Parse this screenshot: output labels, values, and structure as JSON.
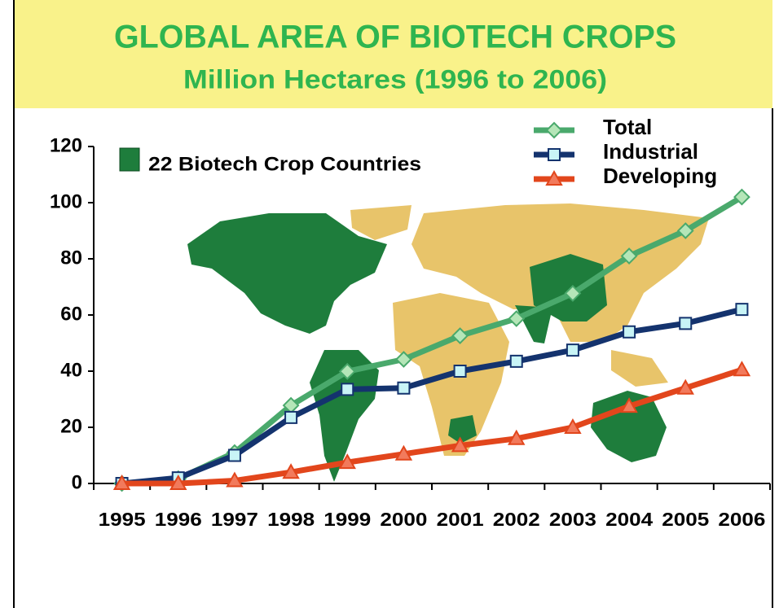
{
  "chart_data": {
    "type": "line",
    "title": "GLOBAL AREA OF BIOTECH CROPS",
    "subtitle": "Million Hectares (1996 to 2006)",
    "annotation": "22 Biotech Crop Countries",
    "categories": [
      "1995",
      "1996",
      "1997",
      "1998",
      "1999",
      "2000",
      "2001",
      "2002",
      "2003",
      "2004",
      "2005",
      "2006"
    ],
    "series": [
      {
        "name": "Total",
        "color": "#4aa96c",
        "marker": "diamond",
        "values": [
          0,
          1.7,
          11,
          27.8,
          39.9,
          44.2,
          52.6,
          58.7,
          67.7,
          81,
          90,
          102
        ]
      },
      {
        "name": "Industrial",
        "color": "#14336e",
        "marker": "square",
        "values": [
          0,
          2,
          10,
          23.5,
          33.5,
          34,
          40,
          43.5,
          47.5,
          54,
          57,
          62
        ]
      },
      {
        "name": "Developing",
        "color": "#e2461c",
        "marker": "triangle",
        "values": [
          0,
          0,
          1,
          4,
          7.5,
          10.5,
          13.5,
          16,
          20,
          27.5,
          34,
          40.5
        ]
      }
    ],
    "ylim": [
      0,
      120
    ],
    "yticks": [
      0,
      20,
      40,
      60,
      80,
      100,
      120
    ],
    "grid": false
  }
}
